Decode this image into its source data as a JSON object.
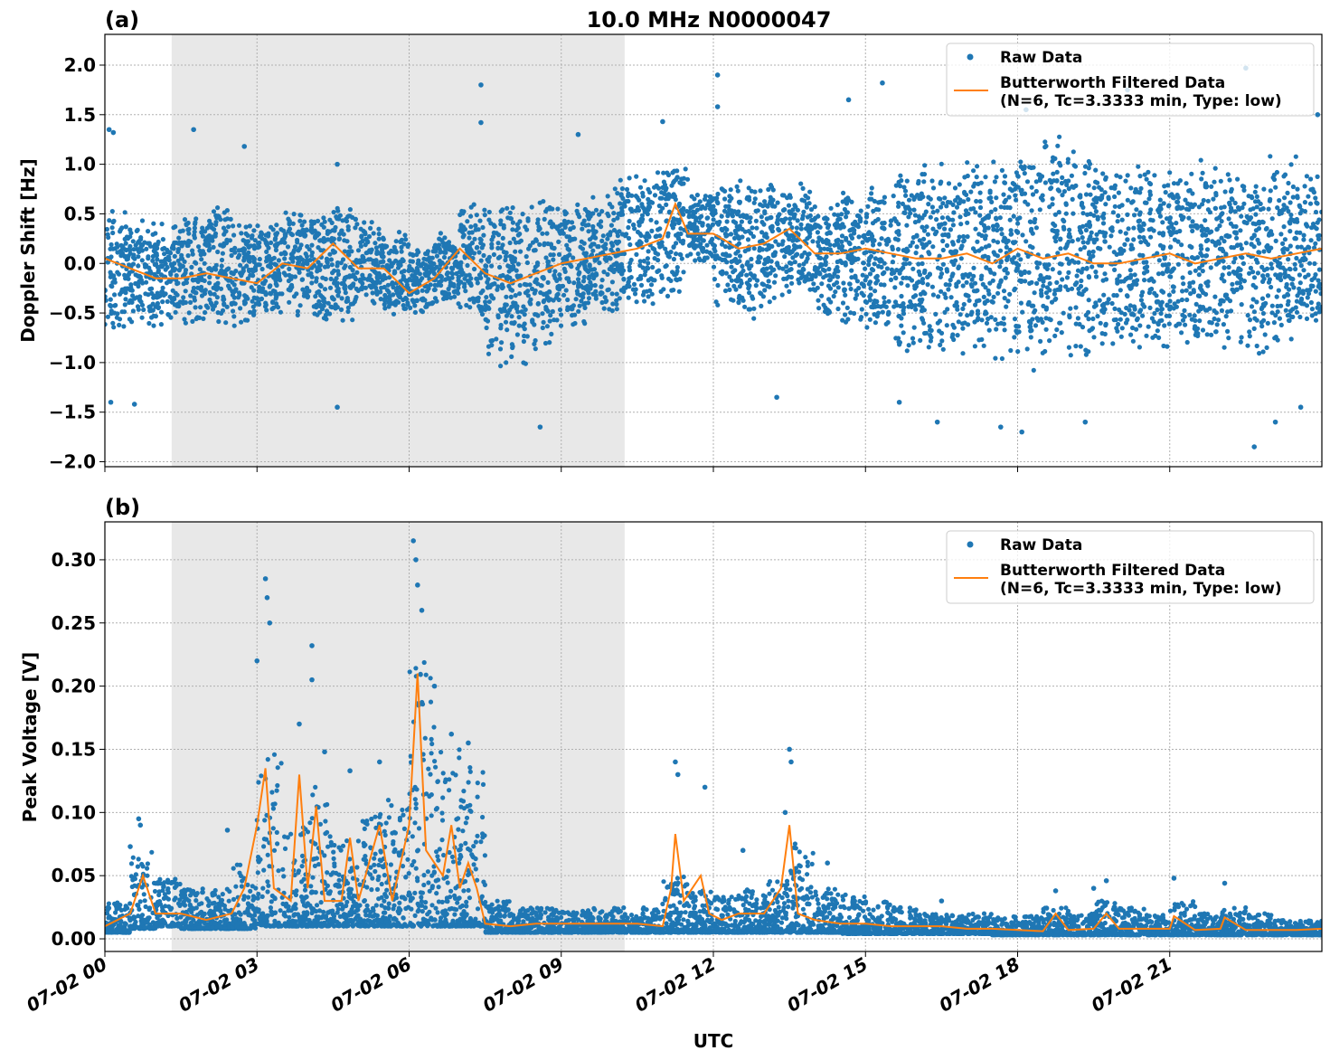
{
  "chart_data": [
    {
      "type": "scatter",
      "panel_label": "(a)",
      "title": "10.0 MHz N0000047",
      "xlabel": "",
      "ylabel": "Doppler Shift [Hz]",
      "xlim": [
        "07-02 00:00",
        "07-03 00:00"
      ],
      "ylim": [
        -2.05,
        2.31
      ],
      "x_ticks": [
        "07-02 00",
        "07-02 03",
        "07-02 06",
        "07-02 09",
        "07-02 12",
        "07-02 15",
        "07-02 18",
        "07-02 21"
      ],
      "y_ticks": [
        "−2.0",
        "−1.5",
        "−1.0",
        "−0.5",
        "0.0",
        "0.5",
        "1.0",
        "1.5",
        "2.0"
      ],
      "y_tick_values": [
        -2.0,
        -1.5,
        -1.0,
        -0.5,
        0.0,
        0.5,
        1.0,
        1.5,
        2.0
      ],
      "grid": true,
      "shaded_interval": [
        "07-02 01:19",
        "07-02 10:15"
      ],
      "legend_position": "top-right",
      "legend": [
        "Raw Data",
        "Butterworth Filtered Data",
        "(N=6, Tc=3.3333 min, Type: low)"
      ],
      "series": [
        {
          "name": "Raw Data",
          "kind": "scatter",
          "color": "#1f77b4",
          "bins": {
            "t": [
              "00:00",
              "00:30",
              "01:00",
              "01:30",
              "02:00",
              "02:30",
              "03:00",
              "03:30",
              "04:00",
              "04:30",
              "05:00",
              "05:30",
              "06:00",
              "06:30",
              "07:00",
              "07:30",
              "08:00",
              "08:30",
              "09:00",
              "09:30",
              "10:00",
              "10:30",
              "11:00",
              "11:30",
              "12:00",
              "12:30",
              "13:00",
              "13:30",
              "14:00",
              "14:30",
              "15:00",
              "15:30",
              "16:00",
              "16:30",
              "17:00",
              "17:30",
              "18:00",
              "18:30",
              "19:00",
              "19:30",
              "20:00",
              "20:30",
              "21:00",
              "21:30",
              "22:00",
              "22:30",
              "23:00",
              "23:30"
            ],
            "low": [
              -0.7,
              -0.6,
              -0.6,
              -0.6,
              -0.6,
              -0.6,
              -0.5,
              -0.5,
              -0.6,
              -0.6,
              -0.4,
              -0.5,
              -0.5,
              -0.4,
              -0.5,
              -1.0,
              -1.0,
              -0.8,
              -0.6,
              -0.5,
              -0.5,
              -0.4,
              -0.3,
              0.0,
              -0.4,
              -0.5,
              -0.4,
              -0.3,
              -0.5,
              -0.6,
              -0.7,
              -0.8,
              -0.9,
              -0.9,
              -0.9,
              -1.0,
              -1.0,
              -0.9,
              -0.9,
              -0.8,
              -0.8,
              -0.8,
              -0.8,
              -0.8,
              -0.8,
              -0.9,
              -0.8,
              -0.7
            ],
            "high": [
              0.6,
              0.4,
              0.4,
              0.5,
              0.6,
              0.4,
              0.4,
              0.5,
              0.5,
              0.6,
              0.4,
              0.3,
              0.2,
              0.3,
              0.6,
              0.7,
              0.6,
              0.6,
              0.6,
              0.7,
              0.9,
              0.9,
              1.0,
              0.7,
              0.8,
              0.8,
              0.8,
              0.8,
              0.6,
              0.7,
              0.8,
              0.9,
              1.0,
              1.0,
              1.1,
              1.1,
              1.2,
              1.2,
              1.1,
              1.0,
              1.0,
              1.0,
              0.9,
              1.0,
              1.0,
              1.0,
              1.0,
              0.9
            ]
          },
          "outliers": [
            [
              "00:05",
              1.35
            ],
            [
              "00:10",
              1.32
            ],
            [
              "00:07",
              -1.4
            ],
            [
              "00:35",
              -1.42
            ],
            [
              "01:45",
              1.35
            ],
            [
              "02:45",
              1.18
            ],
            [
              "04:35",
              -1.45
            ],
            [
              "04:35",
              1.0
            ],
            [
              "07:25",
              1.8
            ],
            [
              "07:25",
              1.42
            ],
            [
              "08:35",
              -1.65
            ],
            [
              "09:20",
              1.3
            ],
            [
              "11:00",
              1.43
            ],
            [
              "12:05",
              1.9
            ],
            [
              "12:05",
              1.58
            ],
            [
              "13:15",
              -1.35
            ],
            [
              "14:40",
              1.65
            ],
            [
              "15:20",
              1.82
            ],
            [
              "15:40",
              -1.4
            ],
            [
              "16:25",
              -1.6
            ],
            [
              "17:40",
              -1.65
            ],
            [
              "18:05",
              -1.7
            ],
            [
              "18:10",
              1.55
            ],
            [
              "19:20",
              -1.6
            ],
            [
              "20:10",
              1.75
            ],
            [
              "22:30",
              1.97
            ],
            [
              "22:40",
              -1.85
            ],
            [
              "23:05",
              -1.6
            ],
            [
              "23:35",
              -1.45
            ],
            [
              "23:55",
              1.5
            ]
          ]
        },
        {
          "name": "Butterworth Filtered Data",
          "kind": "line",
          "color": "#ff7f0e",
          "t": [
            "00:00",
            "00:30",
            "01:00",
            "01:30",
            "02:00",
            "02:30",
            "03:00",
            "03:30",
            "04:00",
            "04:30",
            "05:00",
            "05:30",
            "06:00",
            "06:30",
            "07:00",
            "07:30",
            "08:00",
            "08:30",
            "09:00",
            "09:30",
            "10:00",
            "10:30",
            "11:00",
            "11:15",
            "11:30",
            "12:00",
            "12:30",
            "13:00",
            "13:30",
            "14:00",
            "14:30",
            "15:00",
            "15:30",
            "16:00",
            "16:30",
            "17:00",
            "17:30",
            "18:00",
            "18:30",
            "19:00",
            "19:30",
            "20:00",
            "20:30",
            "21:00",
            "21:30",
            "22:00",
            "22:30",
            "23:00",
            "23:30",
            "24:00"
          ],
          "values": [
            0.05,
            -0.05,
            -0.15,
            -0.15,
            -0.1,
            -0.15,
            -0.2,
            0.0,
            -0.05,
            0.2,
            -0.05,
            -0.05,
            -0.3,
            -0.15,
            0.15,
            -0.1,
            -0.2,
            -0.1,
            0.0,
            0.05,
            0.1,
            0.15,
            0.25,
            0.6,
            0.3,
            0.3,
            0.15,
            0.2,
            0.35,
            0.1,
            0.1,
            0.15,
            0.1,
            0.05,
            0.05,
            0.1,
            0.0,
            0.15,
            0.05,
            0.1,
            0.0,
            0.0,
            0.05,
            0.1,
            0.0,
            0.05,
            0.1,
            0.05,
            0.1,
            0.15
          ]
        }
      ]
    },
    {
      "type": "scatter",
      "panel_label": "(b)",
      "title": "",
      "xlabel": "UTC",
      "ylabel": "Peak Voltage [V]",
      "xlim": [
        "07-02 00:00",
        "07-03 00:00"
      ],
      "ylim": [
        -0.01,
        0.33
      ],
      "x_ticks": [
        "07-02 00",
        "07-02 03",
        "07-02 06",
        "07-02 09",
        "07-02 12",
        "07-02 15",
        "07-02 18",
        "07-02 21"
      ],
      "y_ticks": [
        "0.00",
        "0.05",
        "0.10",
        "0.15",
        "0.20",
        "0.25",
        "0.30"
      ],
      "y_tick_values": [
        0.0,
        0.05,
        0.1,
        0.15,
        0.2,
        0.25,
        0.3
      ],
      "grid": true,
      "shaded_interval": [
        "07-02 01:19",
        "07-02 10:15"
      ],
      "legend_position": "top-right",
      "legend": [
        "Raw Data",
        "Butterworth Filtered Data",
        "(N=6, Tc=3.3333 min, Type: low)"
      ],
      "series": [
        {
          "name": "Raw Data",
          "kind": "scatter",
          "color": "#1f77b4",
          "bins": {
            "t": [
              "00:00",
              "00:30",
              "01:00",
              "01:30",
              "02:00",
              "02:30",
              "03:00",
              "03:30",
              "04:00",
              "04:30",
              "05:00",
              "05:30",
              "06:00",
              "06:30",
              "07:00",
              "07:30",
              "08:00",
              "08:30",
              "09:00",
              "09:30",
              "10:00",
              "10:30",
              "11:00",
              "11:30",
              "12:00",
              "12:30",
              "13:00",
              "13:30",
              "14:00",
              "14:30",
              "15:00",
              "15:30",
              "16:00",
              "16:30",
              "17:00",
              "17:30",
              "18:00",
              "18:30",
              "19:00",
              "19:30",
              "20:00",
              "20:30",
              "21:00",
              "21:30",
              "22:00",
              "22:30",
              "23:00",
              "23:30"
            ],
            "low": [
              0.005,
              0.008,
              0.01,
              0.008,
              0.008,
              0.008,
              0.01,
              0.01,
              0.01,
              0.01,
              0.01,
              0.01,
              0.01,
              0.01,
              0.01,
              0.005,
              0.005,
              0.005,
              0.005,
              0.005,
              0.005,
              0.005,
              0.005,
              0.005,
              0.005,
              0.005,
              0.005,
              0.005,
              0.005,
              0.004,
              0.004,
              0.004,
              0.004,
              0.004,
              0.004,
              0.003,
              0.003,
              0.003,
              0.003,
              0.003,
              0.003,
              0.003,
              0.003,
              0.003,
              0.003,
              0.003,
              0.003,
              0.003
            ],
            "high": [
              0.03,
              0.07,
              0.05,
              0.04,
              0.04,
              0.06,
              0.15,
              0.09,
              0.12,
              0.08,
              0.1,
              0.11,
              0.22,
              0.15,
              0.14,
              0.03,
              0.025,
              0.025,
              0.025,
              0.025,
              0.025,
              0.025,
              0.05,
              0.04,
              0.035,
              0.04,
              0.05,
              0.08,
              0.04,
              0.035,
              0.03,
              0.025,
              0.02,
              0.02,
              0.02,
              0.018,
              0.018,
              0.025,
              0.02,
              0.03,
              0.025,
              0.02,
              0.03,
              0.02,
              0.025,
              0.02,
              0.015,
              0.015
            ]
          },
          "outliers": [
            [
              "00:40",
              0.095
            ],
            [
              "00:42",
              0.09
            ],
            [
              "00:30",
              0.073
            ],
            [
              "02:25",
              0.086
            ],
            [
              "03:10",
              0.285
            ],
            [
              "03:12",
              0.27
            ],
            [
              "03:15",
              0.25
            ],
            [
              "03:00",
              0.22
            ],
            [
              "03:50",
              0.17
            ],
            [
              "04:05",
              0.232
            ],
            [
              "04:05",
              0.205
            ],
            [
              "04:20",
              0.148
            ],
            [
              "04:50",
              0.133
            ],
            [
              "05:25",
              0.14
            ],
            [
              "06:05",
              0.315
            ],
            [
              "06:08",
              0.3
            ],
            [
              "06:10",
              0.28
            ],
            [
              "06:15",
              0.26
            ],
            [
              "06:30",
              0.2
            ],
            [
              "06:50",
              0.162
            ],
            [
              "07:10",
              0.155
            ],
            [
              "11:15",
              0.14
            ],
            [
              "11:18",
              0.13
            ],
            [
              "11:50",
              0.12
            ],
            [
              "12:35",
              0.07
            ],
            [
              "13:30",
              0.15
            ],
            [
              "13:32",
              0.14
            ],
            [
              "13:25",
              0.1
            ],
            [
              "14:15",
              0.06
            ],
            [
              "16:30",
              0.03
            ],
            [
              "18:45",
              0.038
            ],
            [
              "19:30",
              0.04
            ],
            [
              "19:45",
              0.046
            ],
            [
              "21:05",
              0.048
            ],
            [
              "22:05",
              0.044
            ]
          ]
        },
        {
          "name": "Butterworth Filtered Data",
          "kind": "line",
          "color": "#ff7f0e",
          "t": [
            "00:00",
            "00:30",
            "00:45",
            "01:00",
            "01:30",
            "02:00",
            "02:30",
            "02:45",
            "03:00",
            "03:10",
            "03:20",
            "03:40",
            "03:50",
            "04:00",
            "04:10",
            "04:20",
            "04:40",
            "04:50",
            "05:00",
            "05:25",
            "05:40",
            "06:00",
            "06:10",
            "06:20",
            "06:40",
            "06:50",
            "07:00",
            "07:10",
            "07:20",
            "07:30",
            "08:00",
            "08:30",
            "09:00",
            "09:30",
            "10:00",
            "10:30",
            "11:00",
            "11:10",
            "11:15",
            "11:25",
            "11:45",
            "11:55",
            "12:10",
            "12:30",
            "12:45",
            "13:00",
            "13:20",
            "13:30",
            "13:40",
            "14:00",
            "14:30",
            "15:00",
            "15:30",
            "16:00",
            "16:30",
            "17:00",
            "17:30",
            "18:00",
            "18:30",
            "18:45",
            "19:00",
            "19:30",
            "19:45",
            "20:00",
            "20:30",
            "21:00",
            "21:05",
            "21:30",
            "22:00",
            "22:05",
            "22:30",
            "23:00",
            "23:30",
            "24:00"
          ],
          "values": [
            0.01,
            0.02,
            0.05,
            0.02,
            0.02,
            0.015,
            0.02,
            0.04,
            0.09,
            0.135,
            0.04,
            0.03,
            0.13,
            0.04,
            0.105,
            0.03,
            0.03,
            0.08,
            0.03,
            0.09,
            0.03,
            0.09,
            0.21,
            0.07,
            0.05,
            0.09,
            0.04,
            0.06,
            0.04,
            0.012,
            0.01,
            0.012,
            0.012,
            0.012,
            0.012,
            0.012,
            0.01,
            0.04,
            0.083,
            0.03,
            0.05,
            0.02,
            0.015,
            0.02,
            0.02,
            0.02,
            0.04,
            0.09,
            0.02,
            0.015,
            0.012,
            0.012,
            0.01,
            0.01,
            0.01,
            0.008,
            0.008,
            0.007,
            0.006,
            0.02,
            0.007,
            0.008,
            0.02,
            0.008,
            0.008,
            0.008,
            0.018,
            0.007,
            0.008,
            0.017,
            0.007,
            0.007,
            0.007,
            0.008
          ]
        }
      ]
    }
  ]
}
